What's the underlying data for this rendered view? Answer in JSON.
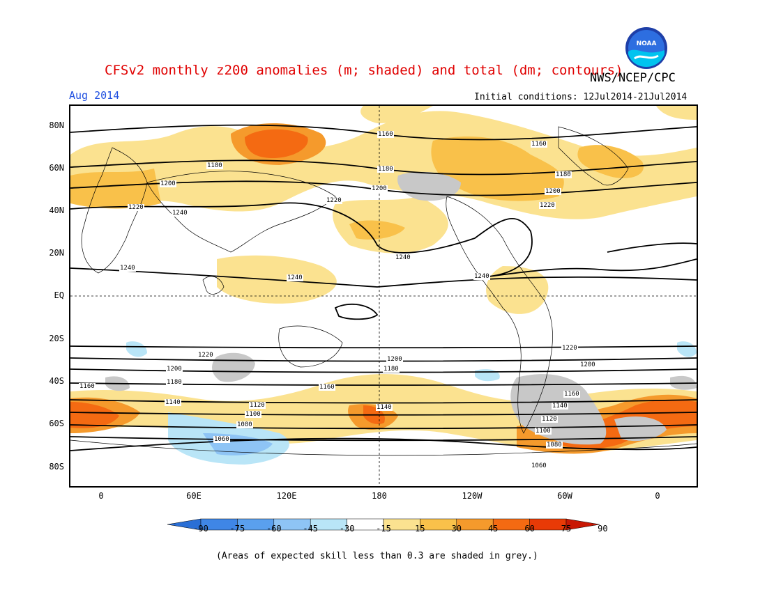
{
  "header": {
    "title": "CFSv2 monthly z200 anomalies (m; shaded) and total (dm; contours)",
    "agency": "NWS/NCEP/CPC",
    "logo_text": "NOAA",
    "period": "Aug 2014",
    "initial_conditions": "Initial conditions: 12Jul2014-21Jul2014"
  },
  "map": {
    "lat_labels": [
      "80N",
      "60N",
      "40N",
      "20N",
      "EQ",
      "20S",
      "40S",
      "60S",
      "80S"
    ],
    "lon_labels": [
      "0",
      "60E",
      "120E",
      "180",
      "120W",
      "60W",
      "0"
    ],
    "contour_labels": [
      "1160",
      "1160",
      "1180",
      "1180",
      "1180",
      "1200",
      "1200",
      "1200",
      "1220",
      "1220",
      "1220",
      "1240",
      "1240",
      "1240",
      "1240",
      "1240",
      "1220",
      "1220",
      "1200",
      "1200",
      "1200",
      "1180",
      "1180",
      "1160",
      "1160",
      "1160",
      "1140",
      "1140",
      "1140",
      "1120",
      "1120",
      "1100",
      "1100",
      "1080",
      "1080",
      "1060",
      "1060"
    ]
  },
  "colorbar": {
    "labels": [
      "-90",
      "-75",
      "-60",
      "-45",
      "-30",
      "-15",
      "15",
      "30",
      "45",
      "60",
      "75",
      "90"
    ],
    "colors": [
      "#2a6fd6",
      "#3f86e6",
      "#5aa0ee",
      "#8ec4f5",
      "#b9e5f7",
      "#ffffff",
      "#fbe290",
      "#f9c14a",
      "#f59a2c",
      "#f46a12",
      "#e83a06",
      "#c91804"
    ]
  },
  "footnote": "(Areas of expected skill less than 0.3 are shaded in grey.)"
}
